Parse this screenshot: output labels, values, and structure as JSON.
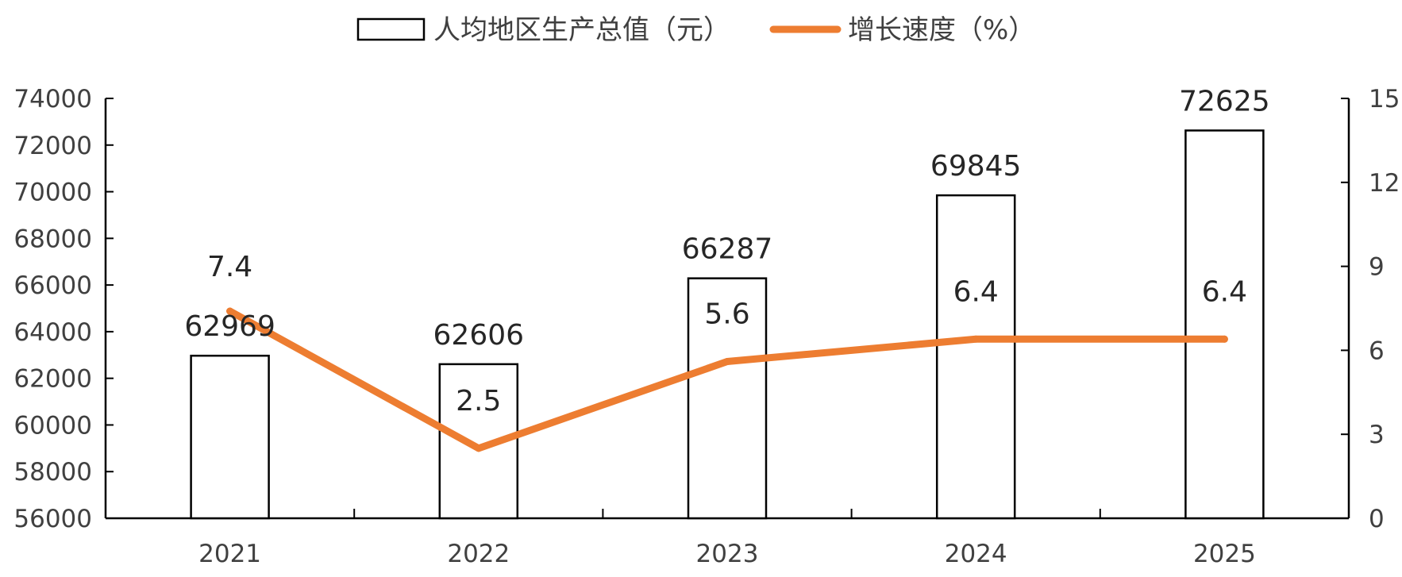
{
  "chart_data": {
    "type": "bar",
    "categories": [
      "2021",
      "2022",
      "2023",
      "2024",
      "2025"
    ],
    "series": [
      {
        "name": "人均地区生产总值（元）",
        "type": "bar",
        "axis": "left",
        "values": [
          62969,
          62606,
          66287,
          69845,
          72625
        ],
        "labels": [
          "62969",
          "62606",
          "66287",
          "69845",
          "72625"
        ]
      },
      {
        "name": "增长速度（%）",
        "type": "line",
        "axis": "right",
        "values": [
          7.4,
          2.5,
          5.6,
          6.4,
          6.4
        ],
        "labels": [
          "7.4",
          "2.5",
          "5.6",
          "6.4",
          "6.4"
        ]
      }
    ],
    "y_left": {
      "range": [
        56000,
        74000
      ],
      "ticks": [
        "56000",
        "58000",
        "60000",
        "62000",
        "64000",
        "66000",
        "68000",
        "70000",
        "72000",
        "74000"
      ]
    },
    "y_right": {
      "range": [
        0,
        15
      ],
      "ticks": [
        "0",
        "3",
        "6",
        "9",
        "12",
        "15"
      ]
    },
    "legend_position": "top-center",
    "grid": false,
    "colors": {
      "bar_fill": "#ffffff",
      "bar_stroke": "#000000",
      "line": "#ed7d31",
      "axis": "#000000"
    }
  }
}
